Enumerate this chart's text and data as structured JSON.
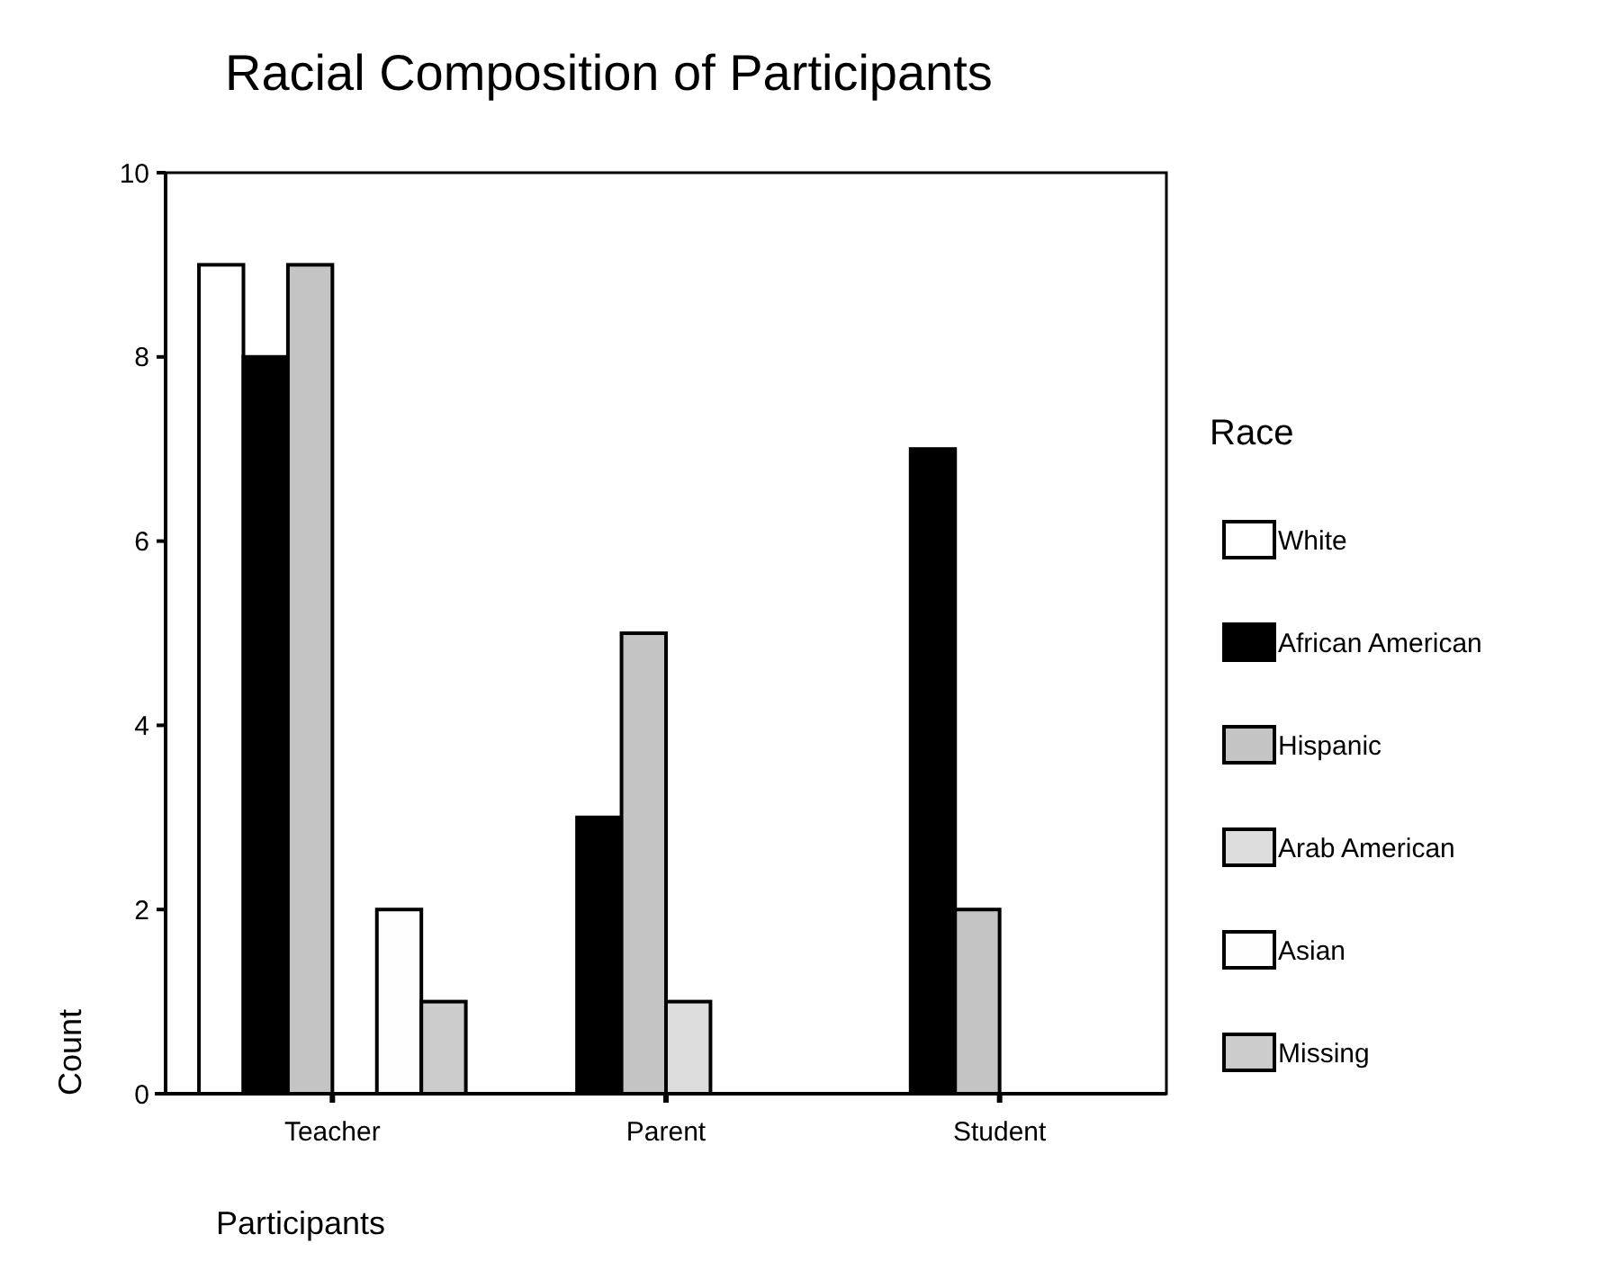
{
  "chart_data": {
    "type": "bar",
    "title": "Racial Composition of Participants",
    "xlabel": "Participants",
    "ylabel": "Count",
    "legend_title": "Race",
    "categories": [
      "Teacher",
      "Parent",
      "Student"
    ],
    "series": [
      {
        "name": "White",
        "color": "#ffffff",
        "values": [
          9,
          0,
          0
        ]
      },
      {
        "name": "African American",
        "color": "#000000",
        "values": [
          8,
          3,
          7
        ]
      },
      {
        "name": "Hispanic",
        "color": "#c4c4c4",
        "values": [
          9,
          5,
          2
        ]
      },
      {
        "name": "Arab American",
        "color": "#dddddd",
        "values": [
          0,
          1,
          0
        ]
      },
      {
        "name": "Asian",
        "color": "#fefefe",
        "values": [
          2,
          0,
          0
        ]
      },
      {
        "name": "Missing",
        "color": "#cccccc",
        "values": [
          1,
          0,
          0
        ]
      }
    ],
    "ylim": [
      0,
      10
    ],
    "yticks": [
      0,
      2,
      4,
      6,
      8,
      10
    ],
    "grid": false,
    "legend": "right"
  }
}
